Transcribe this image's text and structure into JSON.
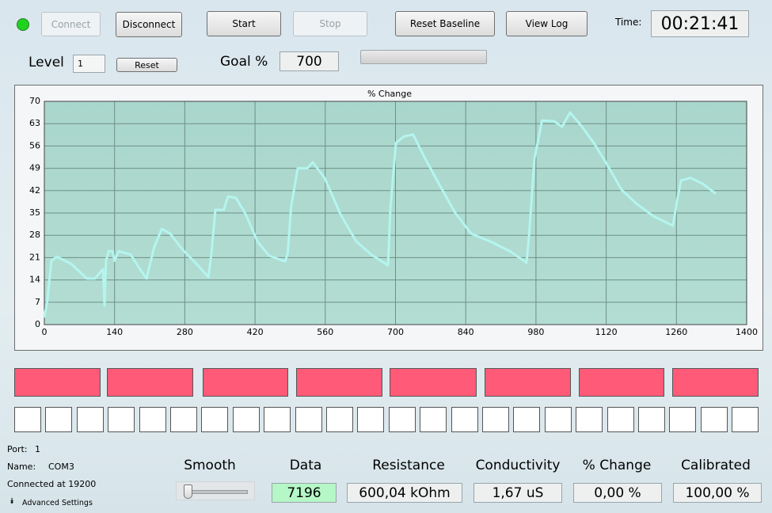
{
  "toolbar": {
    "connect": "Connect",
    "disconnect": "Disconnect",
    "start": "Start",
    "stop": "Stop",
    "reset_baseline": "Reset Baseline",
    "view_log": "View Log",
    "time_label": "Time:",
    "time": "00:21:41"
  },
  "level": {
    "label": "Level",
    "value": "1",
    "reset": "Reset",
    "goal_label": "Goal %",
    "goal": "700"
  },
  "chart_data": {
    "type": "line",
    "title": "% Change",
    "color": "#b4f5ef",
    "grid": true,
    "x": [
      0,
      6,
      14,
      25,
      54,
      85,
      101,
      109,
      117,
      120,
      123,
      128,
      136,
      140,
      148,
      172,
      188,
      204,
      208,
      219,
      234,
      251,
      275,
      306,
      327,
      333,
      341,
      358,
      366,
      382,
      401,
      425,
      448,
      480,
      485,
      492,
      505,
      524,
      535,
      559,
      590,
      622,
      653,
      685,
      690,
      701,
      717,
      735,
      756,
      788,
      819,
      851,
      890,
      930,
      961,
      966,
      977,
      992,
      1016,
      1032,
      1048,
      1072,
      1095,
      1119,
      1151,
      1182,
      1214,
      1253,
      1261,
      1269,
      1288,
      1312,
      1337
    ],
    "values": [
      2.5,
      7.4,
      20,
      21.3,
      19,
      14.4,
      14.4,
      16,
      17.4,
      6,
      20,
      23,
      23,
      20,
      23,
      22,
      18,
      14.4,
      17.4,
      24.3,
      30,
      28.5,
      23.6,
      18.6,
      14.9,
      22.3,
      36,
      36,
      40.2,
      39.7,
      34.7,
      26,
      21.6,
      19.8,
      22.3,
      37,
      49,
      49,
      50.9,
      45.9,
      34.7,
      26,
      21.8,
      18.6,
      37,
      57,
      59,
      59.6,
      53,
      43.7,
      35,
      28.5,
      26,
      22.8,
      19.4,
      27.3,
      52,
      64,
      63.8,
      62,
      66.5,
      62,
      57,
      50.9,
      42.2,
      37.7,
      34,
      31,
      38.5,
      45.2,
      46,
      44.2,
      41.2
    ],
    "xlim": [
      0,
      1400
    ],
    "xticks": [
      0,
      140,
      280,
      420,
      560,
      700,
      840,
      980,
      1120,
      1260,
      1400
    ],
    "ylim": [
      0,
      70
    ],
    "yticks": [
      0,
      7,
      14,
      21,
      28,
      35,
      42,
      49,
      56,
      63,
      70
    ]
  },
  "status": {
    "port_label": "Port:",
    "port": "1",
    "name_label": "Name:",
    "name": "COM3",
    "connection": "Connected at 19200",
    "advanced": "Advanced Settings"
  },
  "smooth_label": "Smooth",
  "readouts": [
    {
      "label": "Data",
      "value": "7196"
    },
    {
      "label": "Resistance",
      "value": "600,04 kOhm"
    },
    {
      "label": "Conductivity",
      "value": "1,67 uS"
    },
    {
      "label": "% Change",
      "value": "0,00 %"
    },
    {
      "label": "Calibrated",
      "value": "100,00 %"
    }
  ]
}
